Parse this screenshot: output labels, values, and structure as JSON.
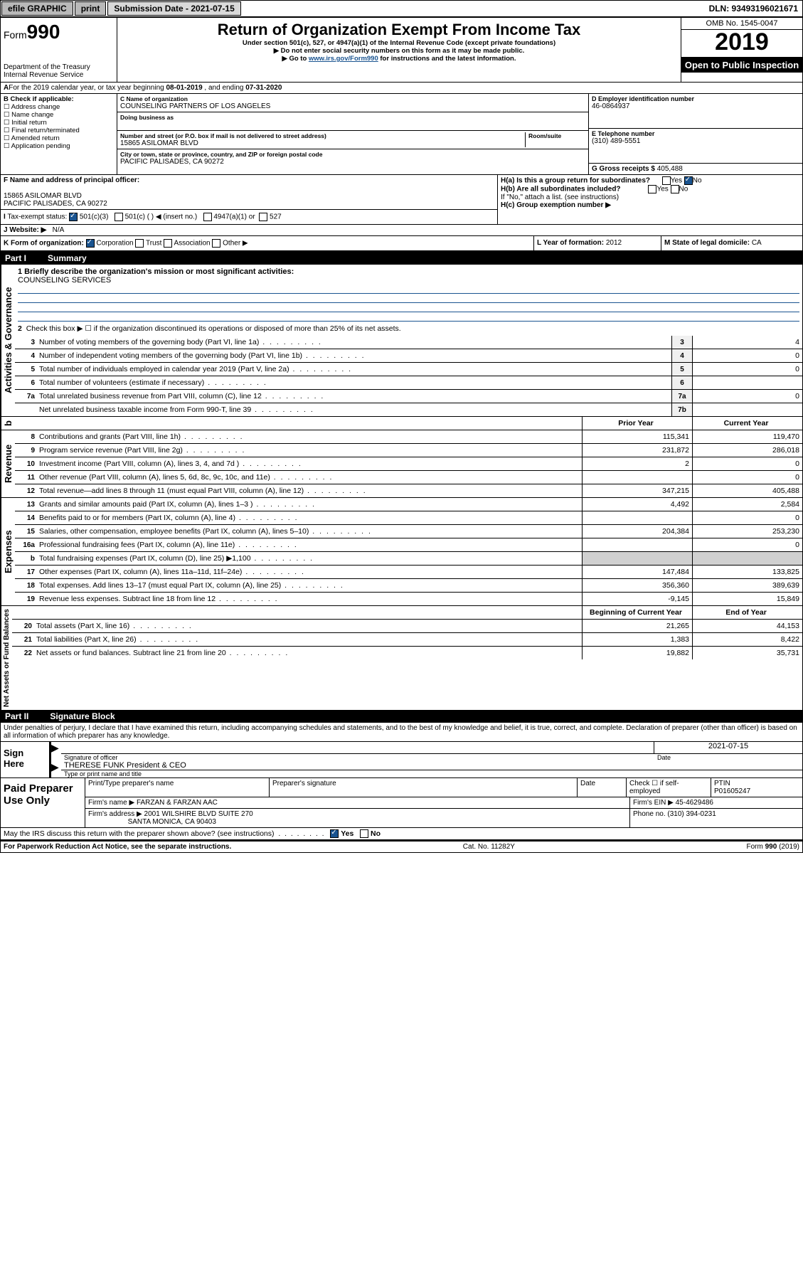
{
  "topbar": {
    "efile": "efile GRAPHIC",
    "print": "print",
    "subdate_label": "Submission Date - 2021-07-15",
    "dln": "DLN: 93493196021671"
  },
  "header": {
    "form_label": "Form",
    "form_num": "990",
    "dept": "Department of the Treasury\nInternal Revenue Service",
    "title": "Return of Organization Exempt From Income Tax",
    "sub1": "Under section 501(c), 527, or 4947(a)(1) of the Internal Revenue Code (except private foundations)",
    "sub2": "▶ Do not enter social security numbers on this form as it may be made public.",
    "sub3_pre": "▶ Go to ",
    "sub3_link": "www.irs.gov/Form990",
    "sub3_post": " for instructions and the latest information.",
    "omb": "OMB No. 1545-0047",
    "year": "2019",
    "open": "Open to Public Inspection"
  },
  "period": {
    "text_a": "For the 2019 calendar year, or tax year beginning ",
    "begin": "08-01-2019",
    "text_b": " , and ending ",
    "end": "07-31-2020"
  },
  "boxB": {
    "label": "B Check if applicable:",
    "items": [
      "Address change",
      "Name change",
      "Initial return",
      "Final return/terminated",
      "Amended return",
      "Application pending"
    ]
  },
  "boxC": {
    "name_lbl": "C Name of organization",
    "name": "COUNSELING PARTNERS OF LOS ANGELES",
    "dba_lbl": "Doing business as",
    "dba": "",
    "addr_lbl": "Number and street (or P.O. box if mail is not delivered to street address)",
    "addr": "15865 ASILOMAR BLVD",
    "room_lbl": "Room/suite",
    "city_lbl": "City or town, state or province, country, and ZIP or foreign postal code",
    "city": "PACIFIC PALISADES, CA  90272"
  },
  "boxD": {
    "lbl": "D Employer identification number",
    "val": "46-0864937"
  },
  "boxE": {
    "lbl": "E Telephone number",
    "val": "(310) 489-5551"
  },
  "boxG": {
    "lbl": "G Gross receipts $",
    "val": "405,488"
  },
  "boxF": {
    "lbl": "F Name and address of principal officer:",
    "addr1": "15865 ASILOMAR BLVD",
    "addr2": "PACIFIC PALISADES, CA  90272"
  },
  "boxH": {
    "a": "H(a)  Is this a group return for subordinates?",
    "a_yes": "Yes",
    "a_no": "No",
    "b": "H(b)  Are all subordinates included?",
    "b_note": "If \"No,\" attach a list. (see instructions)",
    "c": "H(c)  Group exemption number ▶"
  },
  "boxI": {
    "lbl": "Tax-exempt status:",
    "o1": "501(c)(3)",
    "o2": "501(c) (   ) ◀ (insert no.)",
    "o3": "4947(a)(1) or",
    "o4": "527"
  },
  "boxJ": {
    "lbl": "Website: ▶",
    "val": "N/A"
  },
  "boxK": {
    "lbl": "K Form of organization:",
    "o1": "Corporation",
    "o2": "Trust",
    "o3": "Association",
    "o4": "Other ▶"
  },
  "boxL": {
    "lbl": "L Year of formation:",
    "val": "2012"
  },
  "boxM": {
    "lbl": "M State of legal domicile:",
    "val": "CA"
  },
  "part1": {
    "num": "Part I",
    "title": "Summary"
  },
  "summary": {
    "sec1_label": "Activities & Governance",
    "l1_lbl": "1  Briefly describe the organization's mission or most significant activities:",
    "l1_val": "COUNSELING SERVICES",
    "l2": "Check this box ▶ ☐ if the organization discontinued its operations or disposed of more than 25% of its net assets.",
    "rows_single": [
      {
        "n": "3",
        "t": "Number of voting members of the governing body (Part VI, line 1a)",
        "box": "3",
        "v": "4"
      },
      {
        "n": "4",
        "t": "Number of independent voting members of the governing body (Part VI, line 1b)",
        "box": "4",
        "v": "0"
      },
      {
        "n": "5",
        "t": "Total number of individuals employed in calendar year 2019 (Part V, line 2a)",
        "box": "5",
        "v": "0"
      },
      {
        "n": "6",
        "t": "Total number of volunteers (estimate if necessary)",
        "box": "6",
        "v": ""
      },
      {
        "n": "7a",
        "t": "Total unrelated business revenue from Part VIII, column (C), line 12",
        "box": "7a",
        "v": "0"
      },
      {
        "n": "",
        "t": "Net unrelated business taxable income from Form 990-T, line 39",
        "box": "7b",
        "v": ""
      }
    ],
    "col_prior": "Prior Year",
    "col_curr": "Current Year",
    "sec2_label": "Revenue",
    "rows_rev": [
      {
        "n": "8",
        "t": "Contributions and grants (Part VIII, line 1h)",
        "p": "115,341",
        "c": "119,470"
      },
      {
        "n": "9",
        "t": "Program service revenue (Part VIII, line 2g)",
        "p": "231,872",
        "c": "286,018"
      },
      {
        "n": "10",
        "t": "Investment income (Part VIII, column (A), lines 3, 4, and 7d )",
        "p": "2",
        "c": "0"
      },
      {
        "n": "11",
        "t": "Other revenue (Part VIII, column (A), lines 5, 6d, 8c, 9c, 10c, and 11e)",
        "p": "",
        "c": "0"
      },
      {
        "n": "12",
        "t": "Total revenue—add lines 8 through 11 (must equal Part VIII, column (A), line 12)",
        "p": "347,215",
        "c": "405,488"
      }
    ],
    "sec3_label": "Expenses",
    "rows_exp": [
      {
        "n": "13",
        "t": "Grants and similar amounts paid (Part IX, column (A), lines 1–3 )",
        "p": "4,492",
        "c": "2,584"
      },
      {
        "n": "14",
        "t": "Benefits paid to or for members (Part IX, column (A), line 4)",
        "p": "",
        "c": "0"
      },
      {
        "n": "15",
        "t": "Salaries, other compensation, employee benefits (Part IX, column (A), lines 5–10)",
        "p": "204,384",
        "c": "253,230"
      },
      {
        "n": "16a",
        "t": "Professional fundraising fees (Part IX, column (A), line 11e)",
        "p": "",
        "c": "0"
      },
      {
        "n": "b",
        "t": "Total fundraising expenses (Part IX, column (D), line 25) ▶1,100",
        "p": "__gray__",
        "c": "__gray__"
      },
      {
        "n": "17",
        "t": "Other expenses (Part IX, column (A), lines 11a–11d, 11f–24e)",
        "p": "147,484",
        "c": "133,825"
      },
      {
        "n": "18",
        "t": "Total expenses. Add lines 13–17 (must equal Part IX, column (A), line 25)",
        "p": "356,360",
        "c": "389,639"
      },
      {
        "n": "19",
        "t": "Revenue less expenses. Subtract line 18 from line 12",
        "p": "-9,145",
        "c": "15,849"
      }
    ],
    "col_beg": "Beginning of Current Year",
    "col_end": "End of Year",
    "sec4_label": "Net Assets or Fund Balances",
    "rows_net": [
      {
        "n": "20",
        "t": "Total assets (Part X, line 16)",
        "p": "21,265",
        "c": "44,153"
      },
      {
        "n": "21",
        "t": "Total liabilities (Part X, line 26)",
        "p": "1,383",
        "c": "8,422"
      },
      {
        "n": "22",
        "t": "Net assets or fund balances. Subtract line 21 from line 20",
        "p": "19,882",
        "c": "35,731"
      }
    ]
  },
  "part2": {
    "num": "Part II",
    "title": "Signature Block"
  },
  "perjury": "Under penalties of perjury, I declare that I have examined this return, including accompanying schedules and statements, and to the best of my knowledge and belief, it is true, correct, and complete. Declaration of preparer (other than officer) is based on all information of which preparer has any knowledge.",
  "sign": {
    "here": "Sign Here",
    "sig_lbl": "Signature of officer",
    "date": "2021-07-15",
    "date_lbl": "Date",
    "name": "THERESE FUNK  President & CEO",
    "name_lbl": "Type or print name and title"
  },
  "paid": {
    "label": "Paid Preparer Use Only",
    "h1": "Print/Type preparer's name",
    "h2": "Preparer's signature",
    "h3": "Date",
    "h4_a": "Check ☐ if self-employed",
    "h5": "PTIN",
    "ptin": "P01605247",
    "firm_lbl": "Firm's name    ▶",
    "firm": "FARZAN & FARZAN AAC",
    "ein_lbl": "Firm's EIN ▶",
    "ein": "45-4629486",
    "addr_lbl": "Firm's address ▶",
    "addr1": "2001 WILSHIRE BLVD SUITE 270",
    "addr2": "SANTA MONICA, CA  90403",
    "phone_lbl": "Phone no.",
    "phone": "(310) 394-0231"
  },
  "discuss": {
    "q": "May the IRS discuss this return with the preparer shown above? (see instructions)",
    "yes": "Yes",
    "no": "No"
  },
  "footer": {
    "left": "For Paperwork Reduction Act Notice, see the separate instructions.",
    "mid": "Cat. No. 11282Y",
    "right": "Form 990 (2019)"
  }
}
